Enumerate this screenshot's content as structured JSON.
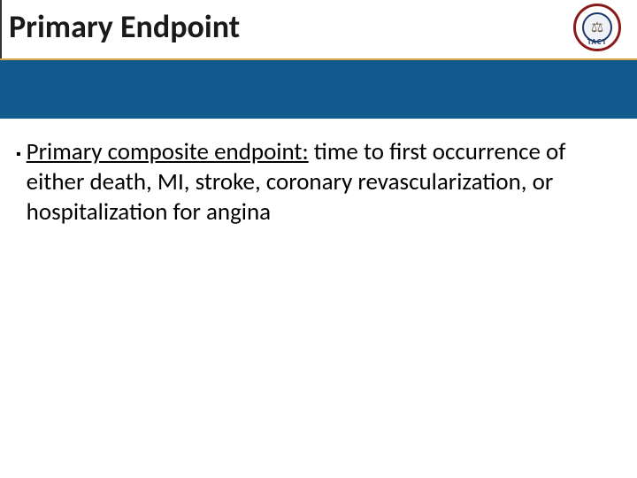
{
  "slide": {
    "title": "Primary Endpoint",
    "logo": {
      "acronym": "TACT",
      "glyph": "⚖"
    },
    "bullet": {
      "marker": "▪",
      "lead": "Primary composite endpoint:",
      "body": "  time to first occurrence of either death, MI, stroke, coronary revascularization, or hospitalization for angina"
    },
    "colors": {
      "band": "#115a8e",
      "accent": "#d4a843",
      "logo_ring": "#8b1a1a",
      "logo_inner_ring": "#1a3768"
    }
  }
}
